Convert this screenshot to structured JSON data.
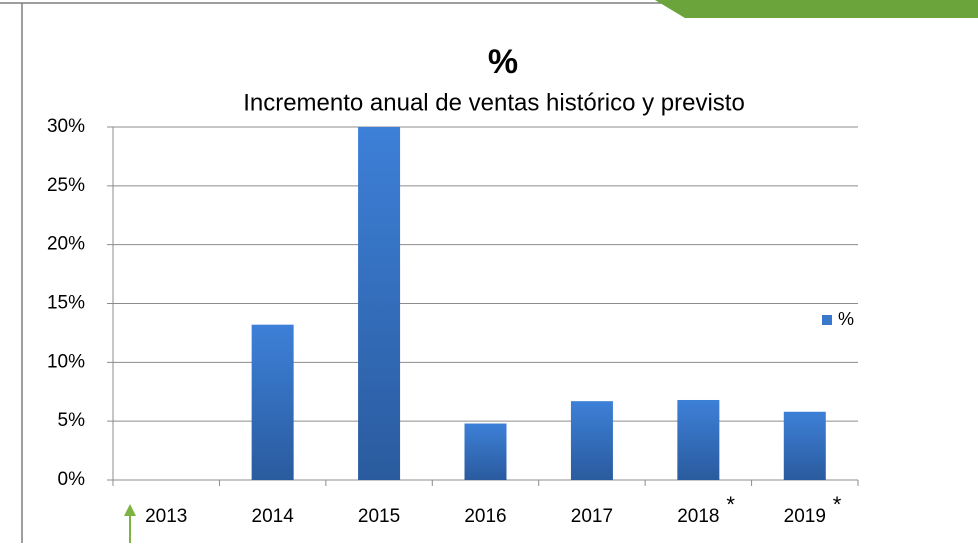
{
  "chart_data": {
    "type": "bar",
    "title": "%",
    "subtitle": "Incremento anual de ventas histórico y previsto",
    "categories": [
      "2013",
      "2014",
      "2015",
      "2016",
      "2017",
      "2018",
      "2019"
    ],
    "series": [
      {
        "name": "%",
        "color": "#3a78cc",
        "values": [
          0,
          13.2,
          30,
          4.8,
          6.7,
          6.8,
          5.8
        ]
      }
    ],
    "annotations": [
      {
        "category": "2018",
        "text": "*"
      },
      {
        "category": "2019",
        "text": "*"
      }
    ],
    "ylim": [
      0,
      30
    ],
    "yticks": [
      {
        "value": 0,
        "label": "0%"
      },
      {
        "value": 5,
        "label": "5%"
      },
      {
        "value": 10,
        "label": "10%"
      },
      {
        "value": 15,
        "label": "15%"
      },
      {
        "value": 20,
        "label": "20%"
      },
      {
        "value": 25,
        "label": "25%"
      },
      {
        "value": 30,
        "label": "30%"
      }
    ],
    "grid": true,
    "legend": "right"
  }
}
